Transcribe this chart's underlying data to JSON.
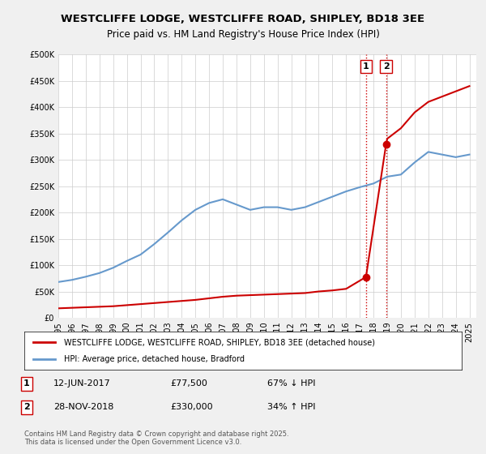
{
  "title": "WESTCLIFFE LODGE, WESTCLIFFE ROAD, SHIPLEY, BD18 3EE",
  "subtitle": "Price paid vs. HM Land Registry's House Price Index (HPI)",
  "red_line_label": "WESTCLIFFE LODGE, WESTCLIFFE ROAD, SHIPLEY, BD18 3EE (detached house)",
  "blue_line_label": "HPI: Average price, detached house, Bradford",
  "red_color": "#cc0000",
  "blue_color": "#6699cc",
  "background_color": "#f0f0f0",
  "plot_bg_color": "#ffffff",
  "grid_color": "#cccccc",
  "transaction1": {
    "date": "12-JUN-2017",
    "price": 77500,
    "hpi_change": "67% ↓ HPI",
    "label": "1",
    "year": 2017.45
  },
  "transaction2": {
    "date": "28-NOV-2018",
    "price": 330000,
    "hpi_change": "34% ↑ HPI",
    "label": "2",
    "year": 2018.92
  },
  "copyright": "Contains HM Land Registry data © Crown copyright and database right 2025.\nThis data is licensed under the Open Government Licence v3.0.",
  "xlim": [
    1995,
    2025.5
  ],
  "ylim": [
    0,
    500000
  ],
  "yticks": [
    0,
    50000,
    100000,
    150000,
    200000,
    250000,
    300000,
    350000,
    400000,
    450000,
    500000
  ],
  "xticks": [
    1995,
    1996,
    1997,
    1998,
    1999,
    2000,
    2001,
    2002,
    2003,
    2004,
    2005,
    2006,
    2007,
    2008,
    2009,
    2010,
    2011,
    2012,
    2013,
    2014,
    2015,
    2016,
    2017,
    2018,
    2019,
    2020,
    2021,
    2022,
    2023,
    2024,
    2025
  ],
  "hpi_x": [
    1995,
    1996,
    1997,
    1998,
    1999,
    2000,
    2001,
    2002,
    2003,
    2004,
    2005,
    2006,
    2007,
    2008,
    2009,
    2010,
    2011,
    2012,
    2013,
    2014,
    2015,
    2016,
    2017,
    2018,
    2019,
    2020,
    2021,
    2022,
    2023,
    2024,
    2025
  ],
  "hpi_y": [
    68000,
    72000,
    78000,
    85000,
    95000,
    108000,
    120000,
    140000,
    162000,
    185000,
    205000,
    218000,
    225000,
    215000,
    205000,
    210000,
    210000,
    205000,
    210000,
    220000,
    230000,
    240000,
    248000,
    255000,
    268000,
    272000,
    295000,
    315000,
    310000,
    305000,
    310000
  ],
  "price_x": [
    1995,
    1996,
    1997,
    1998,
    1999,
    2000,
    2001,
    2002,
    2003,
    2004,
    2005,
    2006,
    2007,
    2008,
    2009,
    2010,
    2011,
    2012,
    2013,
    2014,
    2015,
    2016,
    2017.45,
    2018.92,
    2019,
    2020,
    2021,
    2022,
    2023,
    2024,
    2025
  ],
  "price_y": [
    18000,
    19000,
    20000,
    21000,
    22000,
    24000,
    26000,
    28000,
    30000,
    32000,
    34000,
    37000,
    40000,
    42000,
    43000,
    44000,
    45000,
    46000,
    47000,
    50000,
    52000,
    55000,
    77500,
    330000,
    340000,
    360000,
    390000,
    410000,
    420000,
    430000,
    440000
  ]
}
